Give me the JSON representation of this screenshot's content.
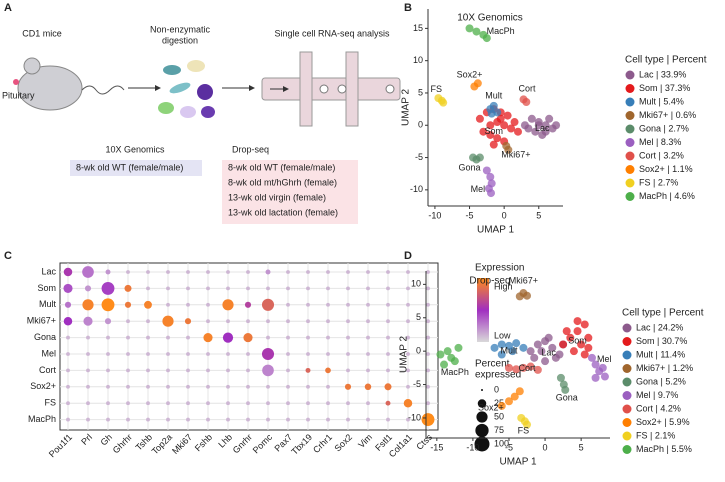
{
  "panel_labels": [
    "A",
    "B",
    "C",
    "D"
  ],
  "panel_a": {
    "mouse": "CD1 mice",
    "pituitary": "Pituitary",
    "digestion": [
      "Non-enzymatic",
      "digestion"
    ],
    "analysis": "Single cell RNA-seq analysis",
    "tenx": {
      "title": "10X Genomics",
      "items": [
        "8-wk old WT (female/male)"
      ]
    },
    "dropseq": {
      "title": "Drop-seq",
      "items": [
        "8-wk old WT (female/male)",
        "8-wk old mt/hGhrh (female)",
        "13-wk old virgin (female)",
        "13-wk old lactation (female)"
      ]
    }
  },
  "chart_data": [
    {
      "type": "scatter",
      "title": "10X Genomics",
      "x_label": "UMAP 1",
      "y_label": "UMAP 2",
      "xlim": [
        -11,
        8.5
      ],
      "ylim": [
        -12.5,
        18
      ],
      "xticks": [
        -10,
        -5,
        0,
        5
      ],
      "yticks": [
        -10,
        -5,
        0,
        5,
        10,
        15
      ],
      "legend_title": "Cell type | Percent",
      "series": [
        {
          "name": "Lac | 33.9%",
          "color": "#8c5a8c",
          "x": [
            3,
            4,
            5,
            6,
            7,
            7.5,
            4.5,
            5.5,
            6.5,
            3.5,
            5,
            6
          ],
          "y": [
            0,
            1,
            0.5,
            0,
            -0.5,
            0,
            -1,
            -1.5,
            1,
            -0.5,
            0,
            -1
          ]
        },
        {
          "name": "Som | 37.3%",
          "color": "#e41a1c",
          "x": [
            -3.5,
            -2.5,
            -1.5,
            -0.5,
            0.5,
            1.5,
            -2,
            -1,
            0,
            1,
            -3,
            -2,
            -1,
            0,
            2,
            -1.5,
            -0.5
          ],
          "y": [
            1,
            2,
            2.5,
            2,
            1.5,
            0.5,
            0,
            0.5,
            0,
            -0.5,
            -1,
            -1.5,
            -2,
            -2.5,
            -1,
            -3,
            1
          ]
        },
        {
          "name": "Mult | 5.4%",
          "color": "#377eb8",
          "x": [
            -2,
            -1.5,
            -1,
            -1.8
          ],
          "y": [
            2.5,
            3,
            2,
            1.8
          ]
        },
        {
          "name": "Mki67+ | 0.6%",
          "color": "#a0662d",
          "x": [
            0.3,
            0.6
          ],
          "y": [
            -3.2,
            -3.8
          ]
        },
        {
          "name": "Gona | 2.7%",
          "color": "#5b8c6a",
          "x": [
            -4.5,
            -4,
            -3.5
          ],
          "y": [
            -5,
            -5.3,
            -5
          ]
        },
        {
          "name": "Mel | 8.3%",
          "color": "#9b5fc0",
          "x": [
            -2.5,
            -2,
            -1.8,
            -2.2,
            -1.9
          ],
          "y": [
            -7,
            -8,
            -9,
            -9.8,
            -10.5
          ]
        },
        {
          "name": "Cort | 3.2%",
          "color": "#e0504a",
          "x": [
            2.8,
            3.2
          ],
          "y": [
            4,
            3.6
          ]
        },
        {
          "name": "Sox2+ | 1.1%",
          "color": "#ff7f00",
          "x": [
            -4.3,
            -3.8
          ],
          "y": [
            6,
            6.5
          ]
        },
        {
          "name": "FS | 2.7%",
          "color": "#f0d020",
          "x": [
            -9.5,
            -9,
            -8.8
          ],
          "y": [
            4.2,
            3.8,
            3.5
          ]
        },
        {
          "name": "MacPh | 4.6%",
          "color": "#4daf4a",
          "x": [
            -5,
            -4,
            -3,
            -2.5
          ],
          "y": [
            15,
            14.5,
            14,
            13.5
          ]
        }
      ],
      "annotations": [
        {
          "text": "MacPh",
          "x": -0.5,
          "y": 14.5
        },
        {
          "text": "Sox2+",
          "x": -5,
          "y": 7.8
        },
        {
          "text": "Mult",
          "x": -1.5,
          "y": 4.5
        },
        {
          "text": "Cort",
          "x": 3.3,
          "y": 5.6
        },
        {
          "text": "FS",
          "x": -9.8,
          "y": 5.5
        },
        {
          "text": "Som",
          "x": -1.5,
          "y": -1
        },
        {
          "text": "Lac",
          "x": 5.5,
          "y": -0.5
        },
        {
          "text": "Mki67+",
          "x": 1.7,
          "y": -4.6
        },
        {
          "text": "Gona",
          "x": -5,
          "y": -6.6
        },
        {
          "text": "Mel",
          "x": -3.8,
          "y": -10
        }
      ]
    },
    {
      "type": "dotplot",
      "genes": [
        "Pou1f1",
        "Prl",
        "Gh",
        "Ghrhr",
        "Tshb",
        "Top2a",
        "Mki67",
        "Fshb",
        "Lhb",
        "Gnrhr",
        "Pomc",
        "Pax7",
        "Tbx19",
        "Crhr1",
        "Sox2",
        "Vim",
        "Fstl1",
        "Col1a1",
        "Ctss"
      ],
      "color_legend": {
        "title": "Expression",
        "high": "High",
        "low": "Low",
        "colors": [
          "#d9d9d9",
          "#a02fc0",
          "#ff8c1a"
        ]
      },
      "size_legend": {
        "title": [
          "Percent",
          "expressed"
        ],
        "values": [
          0,
          25,
          50,
          75,
          100
        ]
      },
      "series": [
        {
          "name": "Lac",
          "sizes": [
            25,
            55,
            5,
            2,
            2,
            2,
            2,
            2,
            2,
            2,
            5,
            2,
            2,
            2,
            2,
            2,
            2,
            2,
            2
          ],
          "expression": [
            0.55,
            0.3,
            0.2,
            0.1,
            0.1,
            0.1,
            0.1,
            0.1,
            0.1,
            0.1,
            0.2,
            0.1,
            0.1,
            0.1,
            0.1,
            0.1,
            0.1,
            0.1,
            0.1
          ]
        },
        {
          "name": "Som",
          "sizes": [
            30,
            10,
            70,
            15,
            2,
            2,
            2,
            2,
            2,
            2,
            2,
            2,
            2,
            2,
            2,
            2,
            2,
            2,
            2
          ],
          "expression": [
            0.4,
            0.2,
            0.45,
            0.9,
            0.1,
            0.1,
            0.1,
            0.1,
            0.1,
            0.1,
            0.1,
            0.1,
            0.1,
            0.1,
            0.1,
            0.1,
            0.1,
            0.1,
            0.1
          ]
        },
        {
          "name": "Mult",
          "sizes": [
            10,
            50,
            70,
            10,
            20,
            2,
            2,
            2,
            50,
            10,
            60,
            2,
            2,
            2,
            2,
            2,
            2,
            2,
            2
          ],
          "expression": [
            0.3,
            0.95,
            1,
            0.9,
            0.95,
            0.1,
            0.1,
            0.1,
            0.95,
            0.6,
            0.8,
            0.1,
            0.1,
            0.1,
            0.1,
            0.1,
            0.1,
            0.1,
            0.1
          ]
        },
        {
          "name": "Mki67+",
          "sizes": [
            25,
            30,
            10,
            2,
            2,
            50,
            10,
            2,
            2,
            2,
            2,
            2,
            2,
            2,
            2,
            2,
            2,
            2,
            2
          ],
          "expression": [
            0.5,
            0.25,
            0.2,
            0.1,
            0.1,
            0.95,
            0.9,
            0.1,
            0.1,
            0.1,
            0.1,
            0.1,
            0.1,
            0.1,
            0.1,
            0.1,
            0.1,
            0.1,
            0.1
          ]
        },
        {
          "name": "Gona",
          "sizes": [
            2,
            2,
            2,
            2,
            2,
            2,
            2,
            30,
            40,
            30,
            2,
            2,
            2,
            2,
            2,
            2,
            2,
            2,
            2
          ],
          "expression": [
            0.1,
            0.1,
            0.1,
            0.1,
            0.1,
            0.1,
            0.1,
            0.95,
            0.5,
            0.9,
            0.1,
            0.1,
            0.1,
            0.1,
            0.1,
            0.1,
            0.1,
            0.1,
            0.1
          ]
        },
        {
          "name": "Mel",
          "sizes": [
            2,
            2,
            2,
            2,
            2,
            2,
            2,
            2,
            2,
            2,
            60,
            2,
            2,
            2,
            2,
            2,
            2,
            2,
            2
          ],
          "expression": [
            0.1,
            0.1,
            0.1,
            0.1,
            0.1,
            0.1,
            0.1,
            0.1,
            0.1,
            0.1,
            0.55,
            0.1,
            0.1,
            0.1,
            0.1,
            0.1,
            0.1,
            0.1,
            0.1
          ]
        },
        {
          "name": "Cort",
          "sizes": [
            2,
            2,
            2,
            2,
            2,
            2,
            2,
            2,
            2,
            2,
            55,
            2,
            5,
            8,
            2,
            2,
            2,
            2,
            2
          ],
          "expression": [
            0.1,
            0.1,
            0.1,
            0.1,
            0.1,
            0.1,
            0.1,
            0.1,
            0.1,
            0.1,
            0.25,
            0.1,
            0.8,
            0.9,
            0.1,
            0.1,
            0.1,
            0.1,
            0.1
          ]
        },
        {
          "name": "Sox2+",
          "sizes": [
            2,
            2,
            2,
            2,
            2,
            2,
            2,
            2,
            2,
            2,
            2,
            2,
            2,
            2,
            10,
            12,
            15,
            2,
            2
          ],
          "expression": [
            0.1,
            0.1,
            0.1,
            0.1,
            0.1,
            0.1,
            0.1,
            0.1,
            0.1,
            0.1,
            0.1,
            0.1,
            0.1,
            0.1,
            0.9,
            0.9,
            0.9,
            0.1,
            0.1
          ]
        },
        {
          "name": "FS",
          "sizes": [
            2,
            2,
            2,
            2,
            2,
            2,
            2,
            2,
            2,
            2,
            2,
            2,
            2,
            2,
            2,
            2,
            5,
            25,
            2
          ],
          "expression": [
            0.1,
            0.1,
            0.1,
            0.1,
            0.1,
            0.1,
            0.1,
            0.1,
            0.1,
            0.1,
            0.1,
            0.1,
            0.1,
            0.1,
            0.1,
            0.1,
            0.8,
            0.95,
            0.1
          ]
        },
        {
          "name": "MacPh",
          "sizes": [
            2,
            2,
            2,
            2,
            2,
            2,
            2,
            2,
            2,
            2,
            2,
            2,
            2,
            2,
            2,
            2,
            2,
            2,
            70
          ],
          "expression": [
            0.1,
            0.1,
            0.1,
            0.1,
            0.1,
            0.1,
            0.1,
            0.1,
            0.1,
            0.1,
            0.1,
            0.1,
            0.1,
            0.1,
            0.1,
            0.1,
            0.1,
            0.1,
            1
          ]
        }
      ]
    },
    {
      "type": "scatter",
      "title": "Drop-seq",
      "x_label": "UMAP 1",
      "y_label": "UMAP 2",
      "xlim": [
        -16.5,
        9
      ],
      "ylim": [
        -13,
        12
      ],
      "xticks": [
        -15,
        -10,
        -5,
        0,
        5
      ],
      "yticks": [
        -10,
        -5,
        0,
        5,
        10
      ],
      "legend_title": "Cell type | Percent",
      "series": [
        {
          "name": "Lac | 24.2%",
          "color": "#8c5a8c",
          "x": [
            -2,
            -1,
            0,
            1,
            2,
            -1.5,
            0,
            1.5,
            -0.5,
            0.5,
            2.5
          ],
          "y": [
            0,
            1,
            1.5,
            0.5,
            -0.5,
            -1,
            -1.5,
            -1,
            0,
            2,
            1
          ]
        },
        {
          "name": "Som | 30.7%",
          "color": "#e41a1c",
          "x": [
            2.5,
            3.5,
            4.5,
            5.5,
            6,
            4,
            5,
            5.5,
            3,
            4.5,
            6
          ],
          "y": [
            1,
            2,
            3,
            4,
            2,
            0,
            1,
            -0.5,
            3,
            4.5,
            0.5
          ]
        },
        {
          "name": "Mult | 11.4%",
          "color": "#377eb8",
          "x": [
            -7,
            -6,
            -5,
            -4,
            -3,
            -6,
            -4.5
          ],
          "y": [
            0.5,
            1,
            0.8,
            1.2,
            0.5,
            -0.5,
            0
          ]
        },
        {
          "name": "Mki67+ | 1.2%",
          "color": "#a0662d",
          "x": [
            -3.5,
            -3,
            -2.5
          ],
          "y": [
            8.2,
            8.7,
            8.3
          ]
        },
        {
          "name": "Gona | 5.2%",
          "color": "#5b8c6a",
          "x": [
            2.2,
            2.6,
            2.8
          ],
          "y": [
            -4,
            -5,
            -5.8
          ]
        },
        {
          "name": "Mel | 9.7%",
          "color": "#9b5fc0",
          "x": [
            6.5,
            7,
            7.5,
            8,
            8.3,
            7
          ],
          "y": [
            -1,
            -2,
            -3,
            -2.5,
            -3.8,
            -4
          ]
        },
        {
          "name": "Cort | 4.2%",
          "color": "#e0504a",
          "x": [
            -5,
            -4,
            -3,
            -2,
            -1
          ],
          "y": [
            -2.5,
            -2.7,
            -2.5,
            -2.3,
            -2.8
          ]
        },
        {
          "name": "Sox2+ | 5.9%",
          "color": "#ff7f00",
          "x": [
            -6,
            -5,
            -4.2,
            -3.5
          ],
          "y": [
            -8.2,
            -7.5,
            -6.8,
            -6
          ]
        },
        {
          "name": "FS | 2.1%",
          "color": "#f0d020",
          "x": [
            -3.3,
            -2.8,
            -2.5
          ],
          "y": [
            -10,
            -10.5,
            -11
          ]
        },
        {
          "name": "MacPh | 5.5%",
          "color": "#4daf4a",
          "x": [
            -14.5,
            -13.5,
            -13,
            -12.5,
            -14,
            -12
          ],
          "y": [
            -0.5,
            0,
            -1,
            -1.5,
            -2,
            0.5
          ]
        }
      ],
      "annotations": [
        {
          "text": "Mki67+",
          "x": -3,
          "y": 10.5
        },
        {
          "text": "Mult",
          "x": -5,
          "y": 0
        },
        {
          "text": "Lac",
          "x": 0.5,
          "y": -0.3
        },
        {
          "text": "Som",
          "x": 4.5,
          "y": 1.5
        },
        {
          "text": "Mel",
          "x": 8.2,
          "y": -1.3
        },
        {
          "text": "Cort",
          "x": -2.5,
          "y": -2.6
        },
        {
          "text": "Gona",
          "x": 3,
          "y": -7
        },
        {
          "text": "Sox2+",
          "x": -7.5,
          "y": -8.5
        },
        {
          "text": "FS",
          "x": -3,
          "y": -12
        },
        {
          "text": "MacPh",
          "x": -12.5,
          "y": -3.2
        }
      ]
    }
  ]
}
